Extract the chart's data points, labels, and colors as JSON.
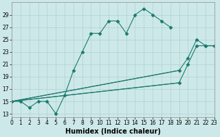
{
  "xlabel": "Humidex (Indice chaleur)",
  "bg_color": "#cde8e8",
  "grid_color": "#afd0d0",
  "line_color": "#1a7a6e",
  "line1_x": [
    0,
    1,
    2,
    3,
    4,
    5,
    6,
    7,
    8,
    9,
    10,
    11,
    12,
    13,
    14,
    15,
    16,
    17,
    18
  ],
  "line1_y": [
    15,
    15,
    14,
    15,
    15,
    13,
    16,
    20,
    23,
    26,
    26,
    28,
    28,
    26,
    29,
    30,
    29,
    28,
    27
  ],
  "line2_x": [
    0,
    23
  ],
  "line2_y": [
    15,
    24
  ],
  "line3_x": [
    0,
    23
  ],
  "line3_y": [
    15,
    24
  ],
  "line2_pts_x": [
    0,
    19,
    20,
    21,
    22,
    23
  ],
  "line2_pts_y": [
    15,
    20,
    22,
    25,
    24,
    24
  ],
  "line3_pts_x": [
    0,
    19,
    20,
    21,
    22,
    23
  ],
  "line3_pts_y": [
    15,
    18,
    21,
    24,
    24,
    24
  ],
  "xlim": [
    0,
    23
  ],
  "ylim": [
    12.5,
    31
  ],
  "yticks": [
    13,
    15,
    17,
    19,
    21,
    23,
    25,
    27,
    29
  ],
  "xticks": [
    0,
    1,
    2,
    3,
    4,
    5,
    6,
    7,
    8,
    9,
    10,
    11,
    12,
    13,
    14,
    15,
    16,
    17,
    18,
    19,
    20,
    21,
    22,
    23
  ],
  "tick_fontsize": 5.5,
  "xlabel_fontsize": 7
}
